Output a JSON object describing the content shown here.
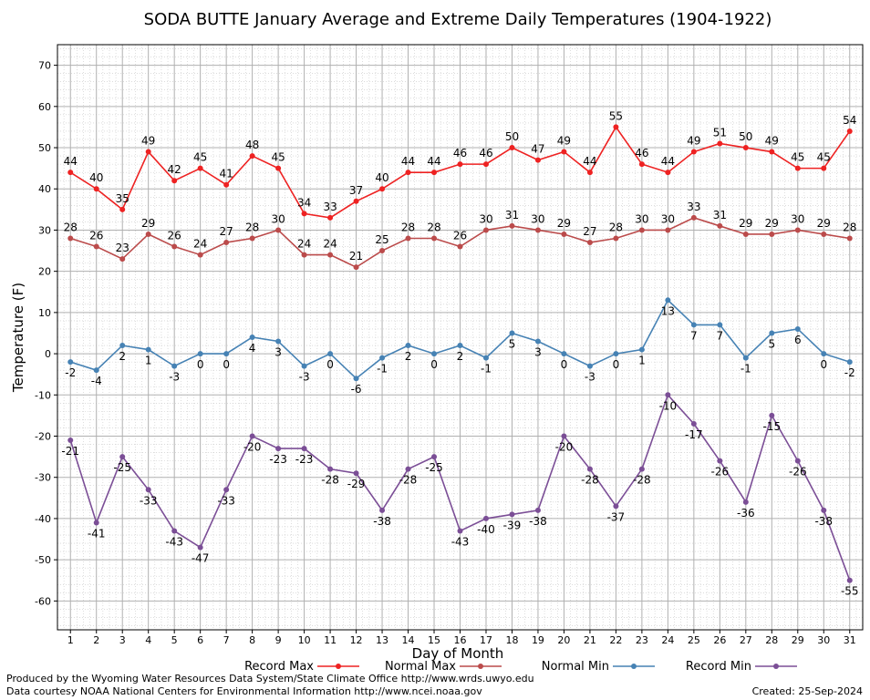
{
  "chart_data": {
    "type": "line",
    "title": "SODA BUTTE January Average and Extreme Daily Temperatures (1904-1922)",
    "xlabel": "Day of Month",
    "ylabel": "Temperature (F)",
    "xlim": [
      0.5,
      31.5
    ],
    "ylim": [
      -67,
      75
    ],
    "yticks": [
      -60,
      -50,
      -40,
      -30,
      -20,
      -10,
      0,
      10,
      20,
      30,
      40,
      50,
      60,
      70
    ],
    "x": [
      1,
      2,
      3,
      4,
      5,
      6,
      7,
      8,
      9,
      10,
      11,
      12,
      13,
      14,
      15,
      16,
      17,
      18,
      19,
      20,
      21,
      22,
      23,
      24,
      25,
      26,
      27,
      28,
      29,
      30,
      31
    ],
    "grid": true,
    "legend_position": "bottom",
    "series": [
      {
        "name": "Record Max",
        "color": "#ee2222",
        "label_pos": "above",
        "values": [
          44,
          40,
          35,
          49,
          42,
          45,
          41,
          48,
          45,
          34,
          33,
          37,
          40,
          44,
          44,
          46,
          46,
          50,
          47,
          49,
          44,
          55,
          46,
          44,
          49,
          51,
          50,
          49,
          45,
          45,
          54
        ]
      },
      {
        "name": "Normal Max",
        "color": "#bb4b4b",
        "label_pos": "above",
        "values": [
          28,
          26,
          23,
          29,
          26,
          24,
          27,
          28,
          30,
          24,
          24,
          21,
          25,
          28,
          28,
          26,
          30,
          31,
          30,
          29,
          27,
          28,
          30,
          30,
          33,
          31,
          29,
          29,
          30,
          29,
          28
        ]
      },
      {
        "name": "Normal Min",
        "color": "#4682b4",
        "label_pos": "below",
        "values": [
          -2,
          -4,
          2,
          1,
          -3,
          0,
          0,
          4,
          3,
          -3,
          0,
          -6,
          -1,
          2,
          0,
          2,
          -1,
          5,
          3,
          0,
          -3,
          0,
          1,
          13,
          7,
          7,
          -1,
          5,
          6,
          0,
          -2
        ]
      },
      {
        "name": "Record Min",
        "color": "#7b4e96",
        "label_pos": "below",
        "values": [
          -21,
          -41,
          -25,
          -33,
          -43,
          -47,
          -33,
          -20,
          -23,
          -23,
          -28,
          -29,
          -38,
          -28,
          -25,
          -43,
          -40,
          -39,
          -38,
          -20,
          -28,
          -37,
          -28,
          -10,
          -17,
          -26,
          -36,
          -15,
          -26,
          -38,
          -55
        ]
      }
    ]
  },
  "footer": {
    "produced_by": "Produced by the Wyoming Water Resources Data System/State Climate Office http://www.wrds.uwyo.edu",
    "courtesy": "Data courtesy NOAA National Centers for Environmental Information http://www.ncei.noaa.gov",
    "created": "Created:  25-Sep-2024"
  }
}
